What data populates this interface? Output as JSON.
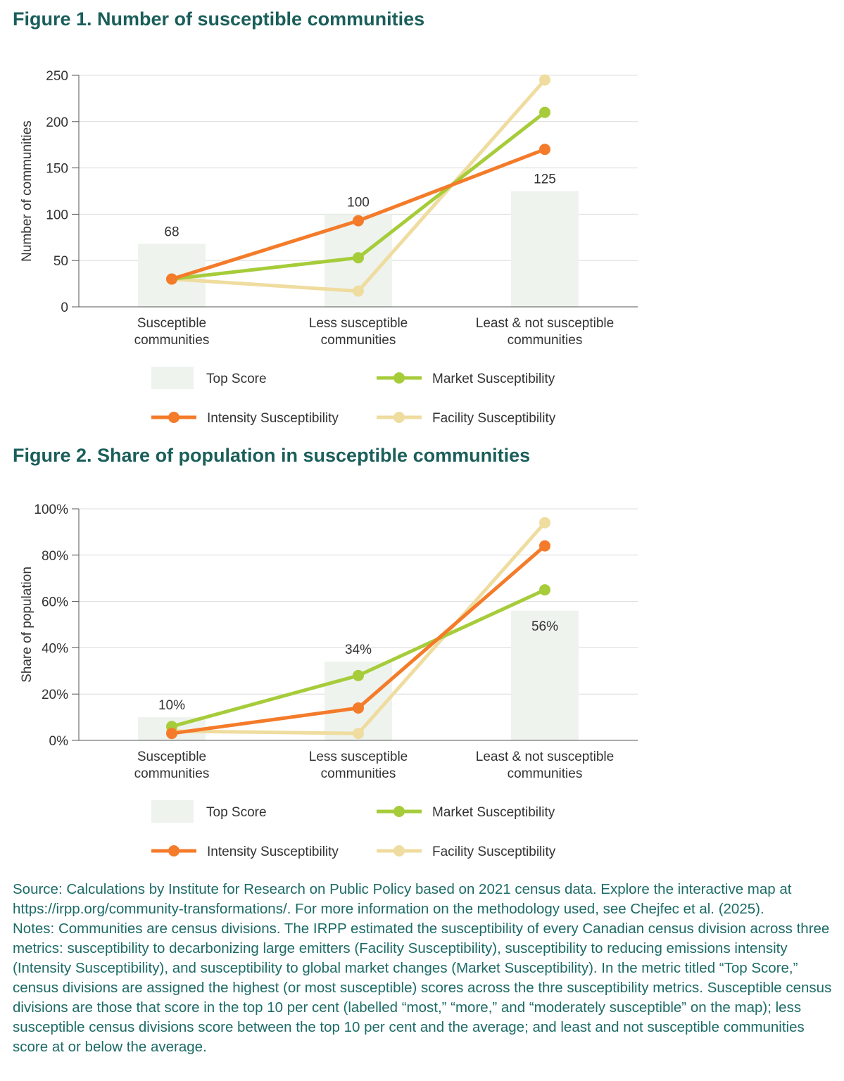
{
  "colors": {
    "title": "#1a5e5a",
    "top_score": "#eef3ee",
    "intensity": "#f47b2a",
    "market": "#a6cc3a",
    "facility": "#efdc9f",
    "notes": "#1d6b67"
  },
  "chart_data": [
    {
      "type": "bar+line",
      "title": "Figure 1. Number of susceptible communities",
      "ylabel": "Number of communities",
      "ylim": [
        0,
        250
      ],
      "yticks": [
        "0",
        "50",
        "100",
        "150",
        "200",
        "250"
      ],
      "ytick_values": [
        0,
        50,
        100,
        150,
        200,
        250
      ],
      "grid": true,
      "categories": [
        [
          "Susceptible",
          "communities"
        ],
        [
          "Less susceptible",
          "communities"
        ],
        [
          "Least & not susceptible",
          "communities"
        ]
      ],
      "bars": {
        "name": "Top Score",
        "values": [
          68,
          100,
          125
        ],
        "labels": [
          "68",
          "100",
          "125"
        ],
        "label_position": [
          "above",
          "above",
          "above"
        ]
      },
      "series": [
        {
          "name": "Intensity Susceptibility",
          "color_key": "intensity",
          "values": [
            30,
            93,
            170
          ]
        },
        {
          "name": "Market Susceptibility",
          "color_key": "market",
          "values": [
            30,
            53,
            210
          ]
        },
        {
          "name": "Facility Susceptibility",
          "color_key": "facility",
          "values": [
            30,
            17,
            245
          ]
        }
      ],
      "legend": {
        "placement": "bottom",
        "items": [
          "Top Score",
          "Market Susceptibility",
          "Intensity Susceptibility",
          "Facility Susceptibility"
        ]
      }
    },
    {
      "type": "bar+line",
      "title": "Figure 2. Share of population in susceptible communities",
      "ylabel": "Share of population",
      "ylim": [
        0,
        100
      ],
      "yticks": [
        "0%",
        "20%",
        "40%",
        "60%",
        "80%",
        "100%"
      ],
      "ytick_values": [
        0,
        20,
        40,
        60,
        80,
        100
      ],
      "grid": true,
      "categories": [
        [
          "Susceptible",
          "communities"
        ],
        [
          "Less susceptible",
          "communities"
        ],
        [
          "Least & not susceptible",
          "communities"
        ]
      ],
      "bars": {
        "name": "Top Score",
        "values": [
          10,
          34,
          56
        ],
        "labels": [
          "10%",
          "34%",
          "56%"
        ],
        "label_position": [
          "above",
          "above",
          "inside"
        ]
      },
      "series": [
        {
          "name": "Intensity Susceptibility",
          "color_key": "intensity",
          "values": [
            3,
            14,
            84
          ]
        },
        {
          "name": "Market Susceptibility",
          "color_key": "market",
          "values": [
            6,
            28,
            65
          ]
        },
        {
          "name": "Facility Susceptibility",
          "color_key": "facility",
          "values": [
            4,
            3,
            94
          ]
        }
      ],
      "legend": {
        "placement": "bottom",
        "items": [
          "Top Score",
          "Market Susceptibility",
          "Intensity Susceptibility",
          "Facility Susceptibility"
        ]
      }
    }
  ],
  "notes": {
    "source": "Source: Calculations by Institute for Research on Public Policy based on 2021 census data. Explore the interactive map at https://irpp.org/community-transformations/. For more information on the methodology used, see Chejfec et al. (2025).",
    "notes": "Notes: Communities are census divisions. The IRPP estimated the susceptibility of every Canadian census division across three metrics: susceptibility to decarbonizing large emitters (Facility Susceptibility), susceptibility to reducing emissions intensity (Intensity Susceptibility), and susceptibility to global market changes (Market Susceptibility). In the metric titled “Top Score,” census divisions are assigned the highest (or most susceptible) scores across the thre susceptibility metrics. Susceptible census divisions are those that score in the top 10 per cent (labelled “most,” “more,” and “moderately susceptible” on the map); less susceptible census divisions score between the top 10 per cent and the average; and least and not susceptible communities score at or below the average."
  }
}
